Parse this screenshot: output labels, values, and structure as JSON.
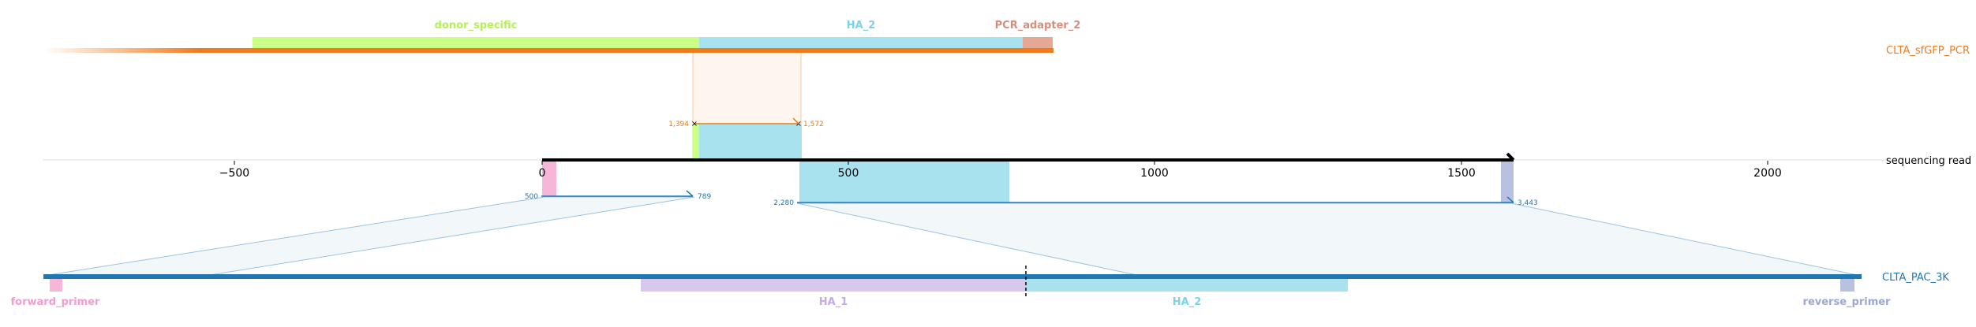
{
  "tracks": {
    "top": {
      "name": "CLTA_sfGFP_PCR",
      "color": "#f07b1b"
    },
    "middle": {
      "name": "sequencing read",
      "color": "#000000"
    },
    "bottom": {
      "name": "CLTA_PAC_3K",
      "color": "#1f77b4"
    }
  },
  "top_features": [
    {
      "name": "donor_specific",
      "color": "#ccff88",
      "text_color": "#b5f05a"
    },
    {
      "name": "HA_2",
      "color": "#a8e2ee",
      "text_color": "#7ad3e8"
    },
    {
      "name": "PCR_adapter_2",
      "color": "#e5a895",
      "text_color": "#d98c7a"
    }
  ],
  "bottom_features": [
    {
      "name": "forward_primer",
      "color": "#f7b5d8",
      "text_color": "#f79ccc"
    },
    {
      "name": "HA_1",
      "color": "#d8c8ee",
      "text_color": "#c2abe8"
    },
    {
      "name": "HA_2",
      "color": "#a8e2ee",
      "text_color": "#7ad3e8"
    },
    {
      "name": "reverse_primer",
      "color": "#b8c2e0",
      "text_color": "#9aa8d6"
    }
  ],
  "axis": {
    "ticks": [
      "−500",
      "0",
      "500",
      "1000",
      "1500",
      "2000"
    ]
  },
  "alignments": {
    "top_match": {
      "start": "1,394",
      "end": "1,572"
    },
    "left_match": {
      "start": "500",
      "end": "789"
    },
    "right_match": {
      "start": "2,280",
      "end": "3,443"
    }
  }
}
